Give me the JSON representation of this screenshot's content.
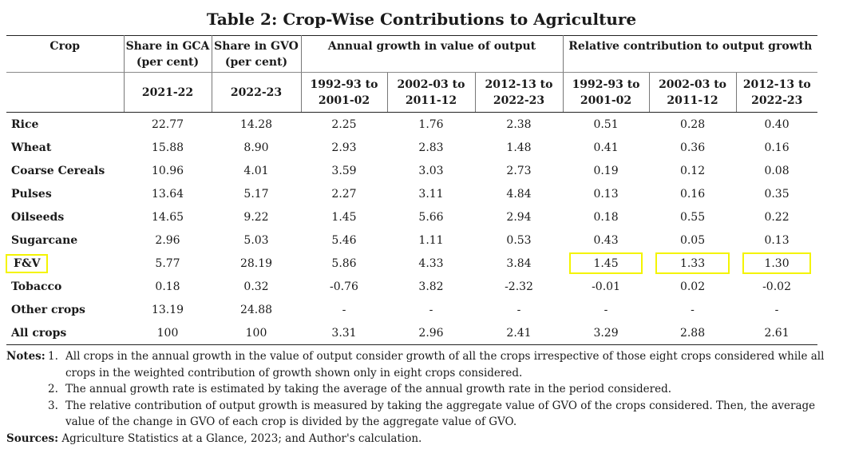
{
  "title": "Table 2: Crop-Wise Contributions to Agriculture",
  "header": {
    "crop": "Crop",
    "share_gca": "Share in GCA (per cent)",
    "share_gvo": "Share in GVO (per cent)",
    "annual_growth": "Annual growth in value of output",
    "relative_contribution": "Relative contribution to output growth",
    "year_gca": "2021-22",
    "year_gvo": "2022-23",
    "periods": [
      "1992-93 to 2001-02",
      "2002-03 to 2011-12",
      "2012-13 to 2022-23"
    ]
  },
  "rows": [
    {
      "crop": "Rice",
      "gca": "22.77",
      "gvo": "14.28",
      "g1": "2.25",
      "g2": "1.76",
      "g3": "2.38",
      "r1": "0.51",
      "r2": "0.28",
      "r3": "0.40"
    },
    {
      "crop": "Wheat",
      "gca": "15.88",
      "gvo": "8.90",
      "g1": "2.93",
      "g2": "2.83",
      "g3": "1.48",
      "r1": "0.41",
      "r2": "0.36",
      "r3": "0.16"
    },
    {
      "crop": "Coarse Cereals",
      "gca": "10.96",
      "gvo": "4.01",
      "g1": "3.59",
      "g2": "3.03",
      "g3": "2.73",
      "r1": "0.19",
      "r2": "0.12",
      "r3": "0.08"
    },
    {
      "crop": "Pulses",
      "gca": "13.64",
      "gvo": "5.17",
      "g1": "2.27",
      "g2": "3.11",
      "g3": "4.84",
      "r1": "0.13",
      "r2": "0.16",
      "r3": "0.35"
    },
    {
      "crop": "Oilseeds",
      "gca": "14.65",
      "gvo": "9.22",
      "g1": "1.45",
      "g2": "5.66",
      "g3": "2.94",
      "r1": "0.18",
      "r2": "0.55",
      "r3": "0.22"
    },
    {
      "crop": "Sugarcane",
      "gca": "2.96",
      "gvo": "5.03",
      "g1": "5.46",
      "g2": "1.11",
      "g3": "0.53",
      "r1": "0.43",
      "r2": "0.05",
      "r3": "0.13"
    },
    {
      "crop": "F&V",
      "gca": "5.77",
      "gvo": "28.19",
      "g1": "5.86",
      "g2": "4.33",
      "g3": "3.84",
      "r1": "1.45",
      "r2": "1.33",
      "r3": "1.30"
    },
    {
      "crop": "Tobacco",
      "gca": "0.18",
      "gvo": "0.32",
      "g1": "-0.76",
      "g2": "3.82",
      "g3": "-2.32",
      "r1": "-0.01",
      "r2": "0.02",
      "r3": "-0.02"
    },
    {
      "crop": "Other crops",
      "gca": "13.19",
      "gvo": "24.88",
      "g1": "-",
      "g2": "-",
      "g3": "-",
      "r1": "-",
      "r2": "-",
      "r3": "-"
    },
    {
      "crop": "All crops",
      "gca": "100",
      "gvo": "100",
      "g1": "3.31",
      "g2": "2.96",
      "g3": "2.41",
      "r1": "3.29",
      "r2": "2.88",
      "r3": "2.61"
    }
  ],
  "notes": {
    "label": "Notes:",
    "items": [
      {
        "num": "1.",
        "text": "All crops in the annual growth in the value of output consider growth of all the crops irrespective of those eight crops considered while all crops in the weighted contribution of growth shown only in eight crops considered."
      },
      {
        "num": "2.",
        "text": "The annual growth rate is estimated by taking the average of the annual growth rate in the period considered."
      },
      {
        "num": "3.",
        "text": "The relative contribution of output growth is measured by taking the aggregate value of GVO of the crops considered. Then, the average value of the change in GVO of each crop is divided by the aggregate value of GVO."
      }
    ]
  },
  "sources": {
    "label": "Sources:",
    "text": "Agriculture Statistics at a Glance, 2023; and Author's calculation."
  },
  "highlight_color": "#f4f400"
}
